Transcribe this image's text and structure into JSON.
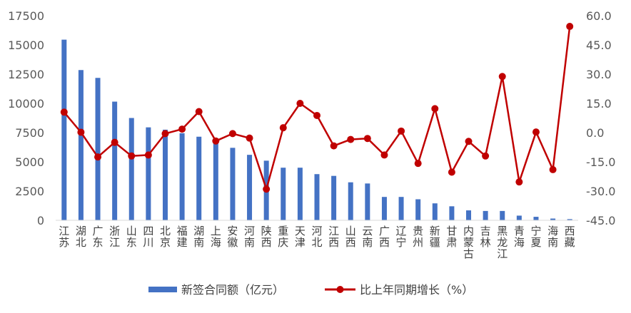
{
  "chart_data": {
    "type": "bar+line",
    "categories": [
      "江苏",
      "湖北",
      "广东",
      "浙江",
      "山东",
      "四川",
      "北京",
      "福建",
      "湖南",
      "上海",
      "安徽",
      "河南",
      "陕西",
      "重庆",
      "天津",
      "河北",
      "江西",
      "山西",
      "云南",
      "广西",
      "辽宁",
      "贵州",
      "新疆",
      "甘肃",
      "内蒙古",
      "吉林",
      "黑龙江",
      "青海",
      "宁夏",
      "海南",
      "西藏"
    ],
    "series": [
      {
        "name": "新签合同额（亿元）",
        "type": "bar",
        "axis": "left",
        "color": "#4472c4",
        "values": [
          15450,
          12850,
          12180,
          10150,
          8750,
          7950,
          7750,
          7450,
          7150,
          6650,
          6200,
          5600,
          5100,
          4500,
          4500,
          3950,
          3800,
          3250,
          3150,
          2000,
          2000,
          1800,
          1450,
          1200,
          850,
          800,
          800,
          400,
          300,
          150,
          100
        ]
      },
      {
        "name": "比上年同期增长（%）",
        "type": "line",
        "axis": "right",
        "color": "#c00000",
        "values": [
          10.5,
          0.2,
          -12.5,
          -5.0,
          -12.0,
          -11.5,
          -0.5,
          1.8,
          10.8,
          -4.3,
          -0.5,
          -2.8,
          -29.0,
          2.5,
          15.0,
          8.8,
          -6.8,
          -3.5,
          -3.0,
          -11.5,
          0.8,
          -15.8,
          12.3,
          -20.3,
          -4.5,
          -12.0,
          28.8,
          -25.3,
          0.3,
          -19.0,
          54.5
        ]
      }
    ],
    "y_left": {
      "min": 0,
      "max": 17500,
      "ticks": [
        "0",
        "2500",
        "5000",
        "7500",
        "10000",
        "12500",
        "15000",
        "17500"
      ]
    },
    "y_right": {
      "min": -45,
      "max": 60,
      "ticks": [
        "-45.0",
        "-30.0",
        "-15.0",
        "0.0",
        "15.0",
        "30.0",
        "45.0",
        "60.0"
      ]
    },
    "legend_position": "bottom",
    "grid": false
  }
}
